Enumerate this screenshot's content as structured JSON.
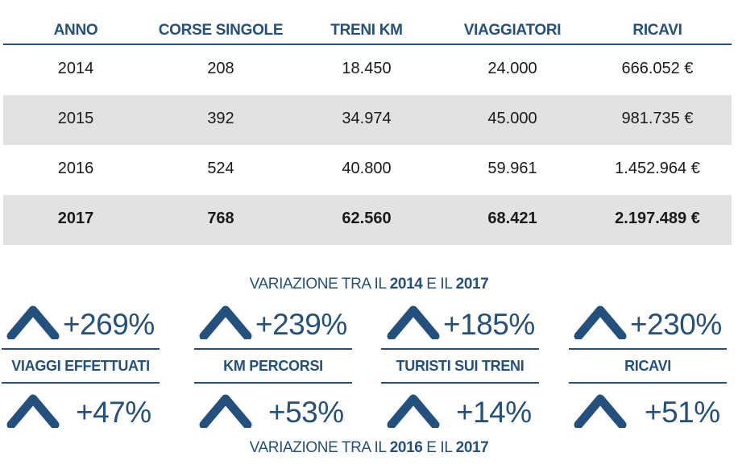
{
  "table": {
    "headers": [
      "ANNO",
      "CORSE SINGOLE",
      "TRENI KM",
      "VIAGGIATORI",
      "RICAVI"
    ],
    "rows": [
      [
        "2014",
        "208",
        "18.450",
        "24.000",
        "666.052 €"
      ],
      [
        "2015",
        "392",
        "34.974",
        "45.000",
        "981.735 €"
      ],
      [
        "2016",
        "524",
        "40.800",
        "59.961",
        "1.452.964 €"
      ],
      [
        "2017",
        "768",
        "62.560",
        "68.421",
        "2.197.489 €"
      ]
    ]
  },
  "variation_top": {
    "prefix": "VARIAZIONE TRA IL ",
    "year_a": "2014",
    "middle": " E IL ",
    "year_b": "2017"
  },
  "variation_bottom": {
    "prefix": "VARIAZIONE TRA IL ",
    "year_a": "2016",
    "middle": " E IL ",
    "year_b": "2017"
  },
  "stats": [
    {
      "label": "VIAGGI EFFETTUATI",
      "change_2014_2017": "+269%",
      "change_2016_2017": "+47%"
    },
    {
      "label": "KM PERCORSI",
      "change_2014_2017": "+239%",
      "change_2016_2017": "+53%"
    },
    {
      "label": "TURISTI SUI TRENI",
      "change_2014_2017": "+185%",
      "change_2016_2017": "+14%"
    },
    {
      "label": "RICAVI",
      "change_2014_2017": "+230%",
      "change_2016_2017": "+51%"
    }
  ],
  "colors": {
    "accent": "#24507e",
    "row_shade": "#e2e2e2"
  },
  "icons": {
    "increase": "chevron-up-icon"
  }
}
